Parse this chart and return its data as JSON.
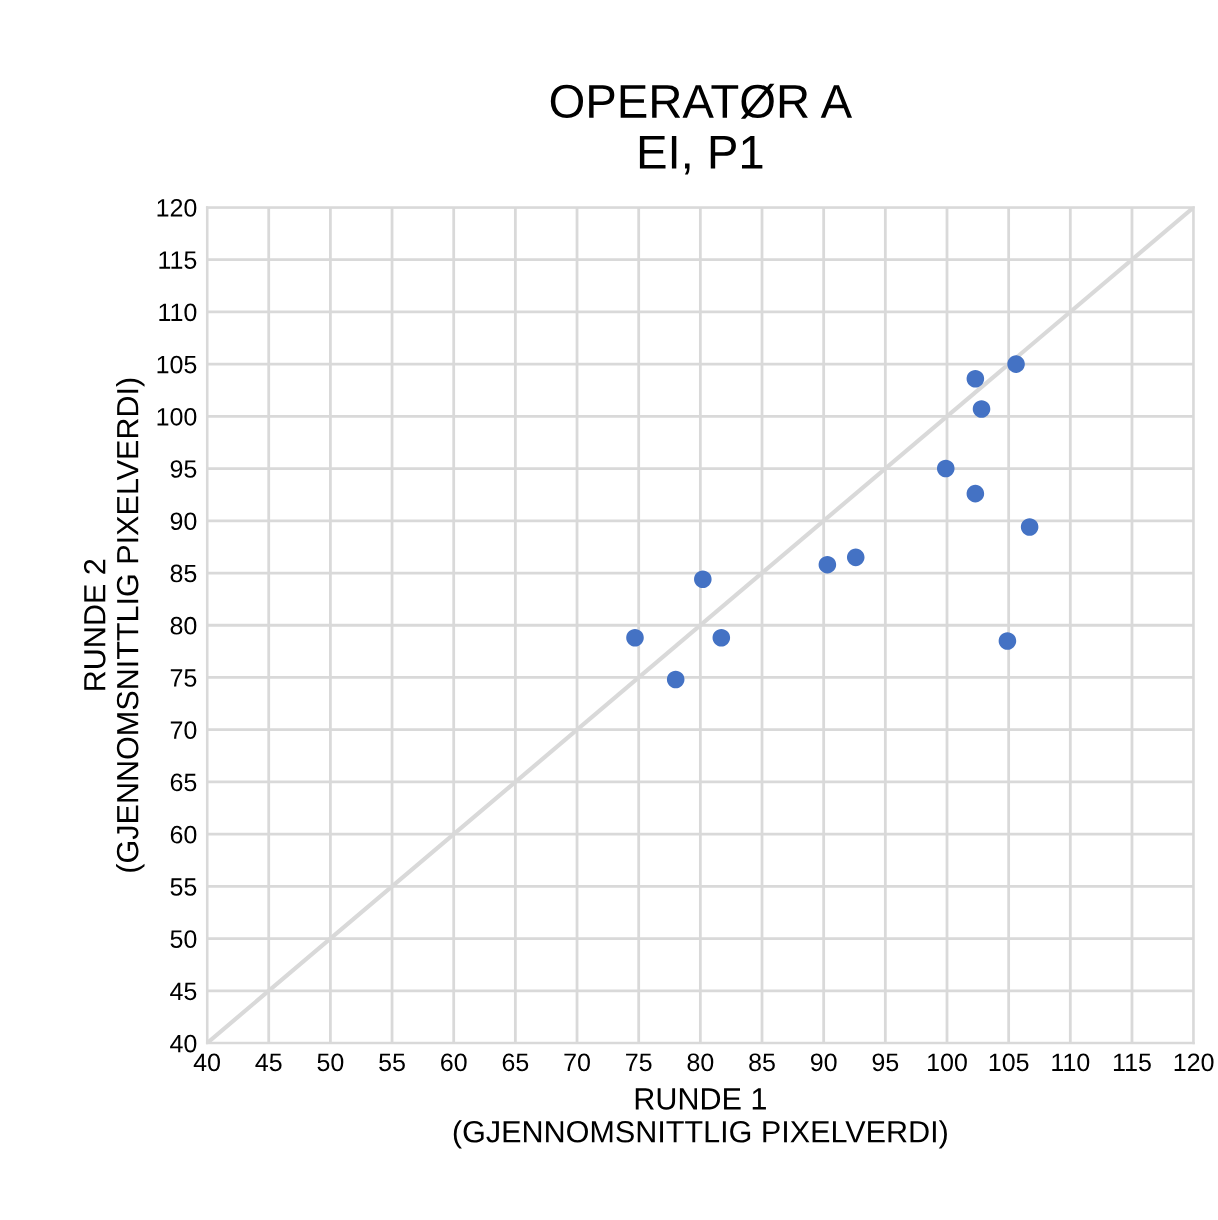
{
  "chart_data": {
    "type": "scatter",
    "title": "OPERATØR A\nEI, P1",
    "xlabel": "RUNDE 1\n(GJENNOMSNITTLIG PIXELVERDI)",
    "ylabel": "RUNDE 2\n(GJENNOMSNITTLIG PIXELVERDI)",
    "series": [
      {
        "color": "#4472c4",
        "marker": "circle",
        "x": [
          74.7,
          78.0,
          80.2,
          81.7,
          90.3,
          92.6,
          99.9,
          102.3,
          102.8,
          105.6,
          102.3,
          106.7,
          104.9
        ],
        "values": [
          78.8,
          74.8,
          84.4,
          78.8,
          85.8,
          86.5,
          95.0,
          103.6,
          100.7,
          105.0,
          92.6,
          89.4,
          78.5
        ]
      },
      {
        "type": "line",
        "color": "#d9d9d9",
        "x": [
          40,
          120
        ],
        "values": [
          40,
          120
        ]
      }
    ],
    "xlim": [
      40,
      120
    ],
    "ylim": [
      40,
      120
    ],
    "xticks": [
      40,
      45,
      50,
      55,
      60,
      65,
      70,
      75,
      80,
      85,
      90,
      95,
      100,
      105,
      110,
      115,
      120
    ],
    "yticks": [
      40,
      45,
      50,
      55,
      60,
      65,
      70,
      75,
      80,
      85,
      90,
      95,
      100,
      105,
      110,
      115,
      120
    ],
    "grid": true,
    "legend": false
  }
}
